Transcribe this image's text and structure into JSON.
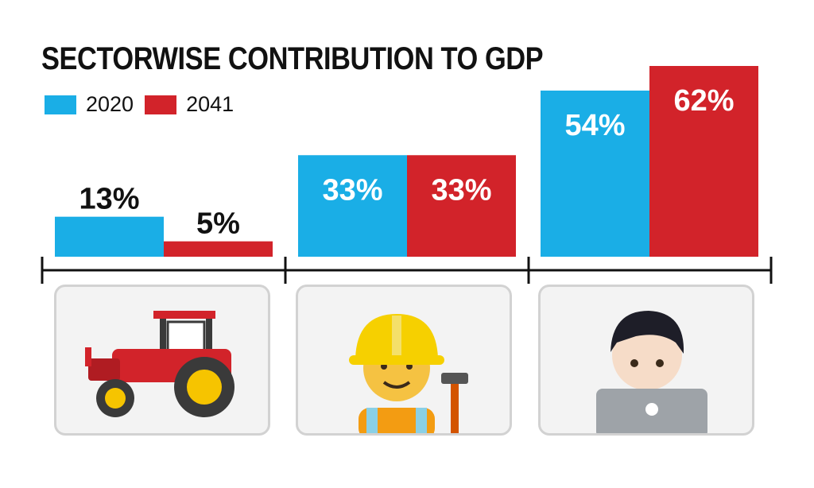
{
  "title": "SECTORWISE CONTRIBUTION TO GDP",
  "colors": {
    "2020": "#1aaee6",
    "2041": "#d2232a"
  },
  "legend": [
    {
      "label": "2020",
      "color": "#1aaee6"
    },
    {
      "label": "2041",
      "color": "#d2232a"
    }
  ],
  "sectors": [
    {
      "icon": "tractor-icon"
    },
    {
      "icon": "construction-worker-icon"
    },
    {
      "icon": "technologist-laptop-icon"
    }
  ],
  "chart_data": {
    "type": "bar",
    "title": "SECTORWISE CONTRIBUTION TO GDP",
    "categories": [
      "",
      "",
      ""
    ],
    "series": [
      {
        "name": "2020",
        "values": [
          13,
          33,
          54
        ],
        "labels": [
          "13%",
          "33%",
          "54%"
        ]
      },
      {
        "name": "2041",
        "values": [
          5,
          33,
          62
        ],
        "labels": [
          "5%",
          "33%",
          "62%"
        ]
      }
    ],
    "ylim": [
      0,
      62
    ],
    "unit": "%",
    "grid": false,
    "legend_position": "top-left"
  }
}
